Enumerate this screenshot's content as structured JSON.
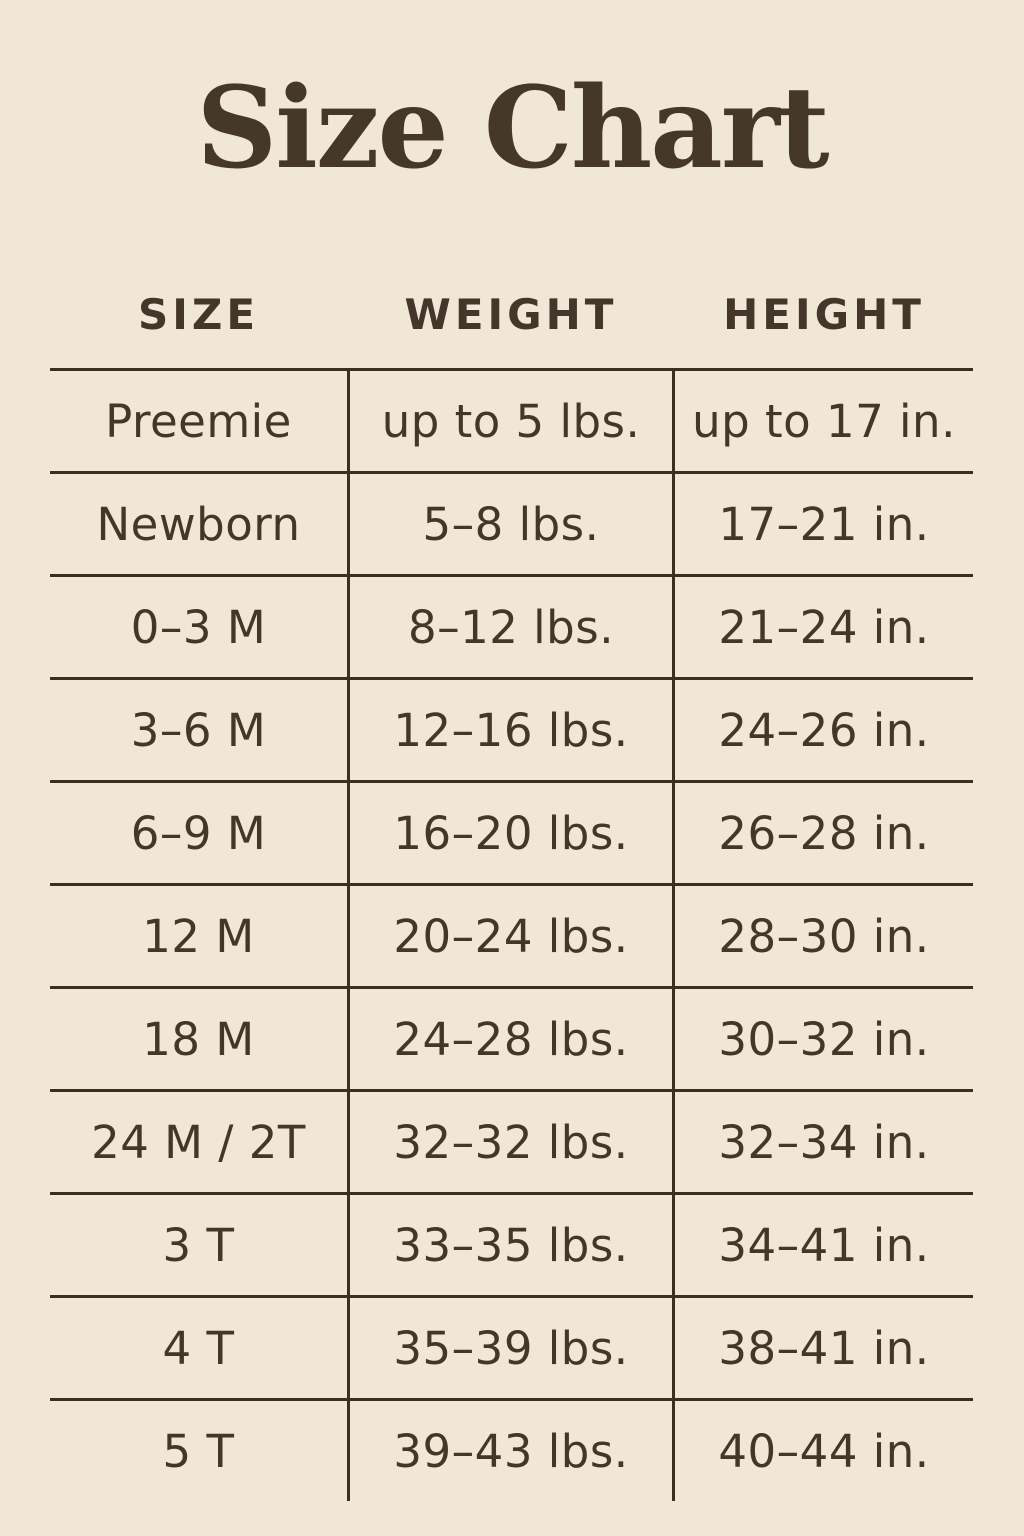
{
  "page": {
    "title": "Size Chart",
    "background_color": "#f0e7d7",
    "text_color": "#44362a",
    "line_color": "#3b2f22"
  },
  "table": {
    "columns": [
      "SIZE",
      "WEIGHT",
      "HEIGHT"
    ],
    "rows": [
      {
        "size": "Preemie",
        "weight": "up to 5 lbs.",
        "height": "up to 17 in."
      },
      {
        "size": "Newborn",
        "weight": "5–8 lbs.",
        "height": "17–21 in."
      },
      {
        "size": "0–3 M",
        "weight": "8–12 lbs.",
        "height": "21–24 in."
      },
      {
        "size": "3–6 M",
        "weight": "12–16 lbs.",
        "height": "24–26 in."
      },
      {
        "size": "6–9 M",
        "weight": "16–20 lbs.",
        "height": "26–28 in."
      },
      {
        "size": "12 M",
        "weight": "20–24 lbs.",
        "height": "28–30 in."
      },
      {
        "size": "18 M",
        "weight": "24–28 lbs.",
        "height": "30–32 in."
      },
      {
        "size": "24 M / 2T",
        "weight": "32–32 lbs.",
        "height": "32–34 in."
      },
      {
        "size": "3 T",
        "weight": "33–35 lbs.",
        "height": "34–41 in."
      },
      {
        "size": "4 T",
        "weight": "35–39 lbs.",
        "height": "38–41 in."
      },
      {
        "size": "5 T",
        "weight": "39–43 lbs.",
        "height": "40–44 in."
      }
    ]
  }
}
